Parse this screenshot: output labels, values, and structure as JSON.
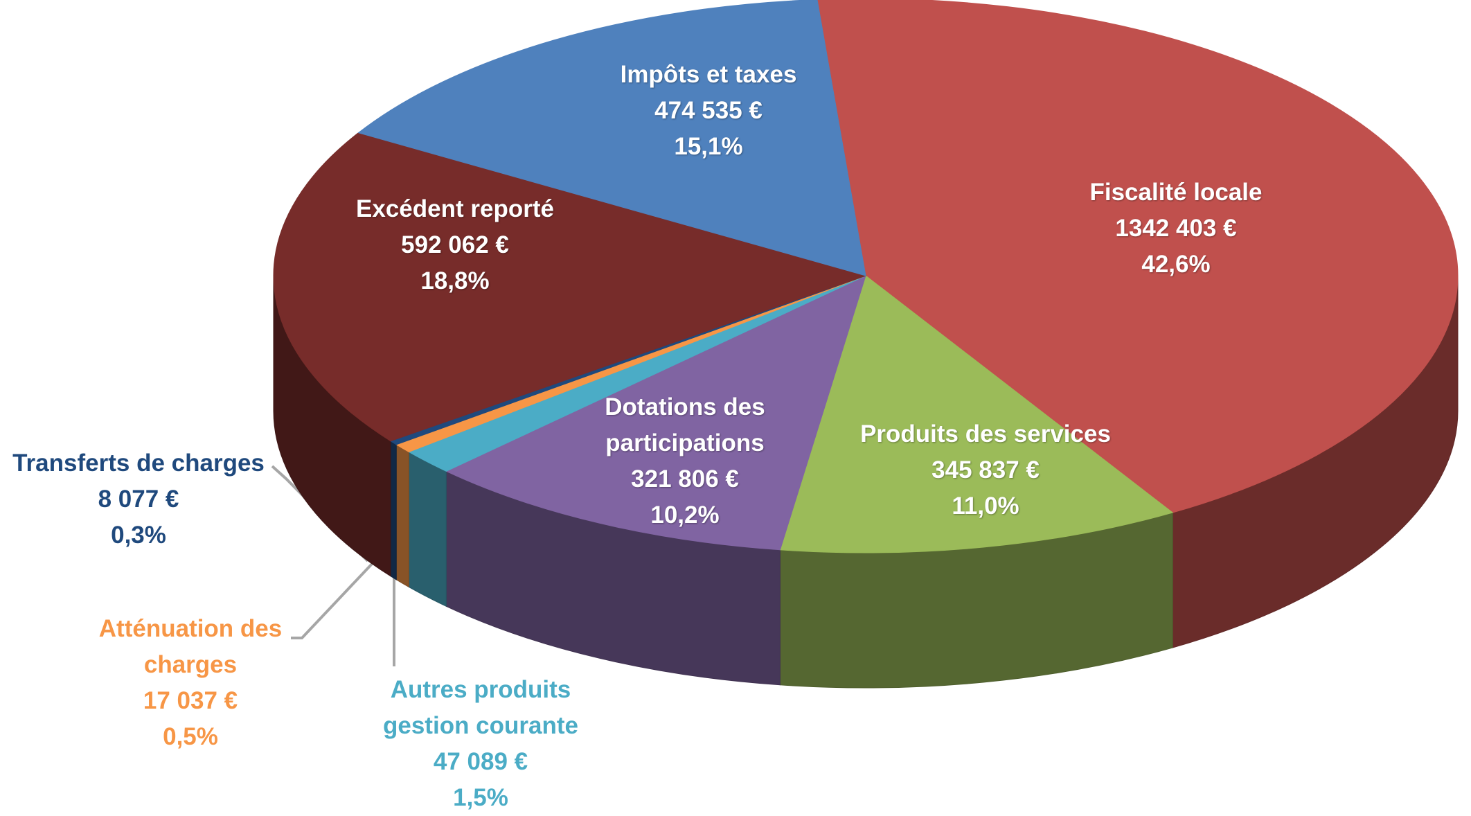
{
  "chart_data": {
    "type": "pie",
    "categories": [
      "Fiscalité locale",
      "Produits des services",
      "Dotations des participations",
      "Autres produits gestion courante",
      "Atténuation des charges",
      "Transferts de charges",
      "Excédent reporté",
      "Impôts et taxes"
    ],
    "values": [
      1342403,
      345837,
      321806,
      47089,
      17037,
      8077,
      592062,
      474535
    ],
    "value_labels": [
      "1342 403 €",
      "345 837 €",
      "321 806 €",
      "47 089 €",
      "17 037 €",
      "8 077 €",
      "592 062 €",
      "474 535 €"
    ],
    "percents": [
      42.6,
      11.0,
      10.2,
      1.5,
      0.5,
      0.3,
      18.8,
      15.1
    ],
    "percent_labels": [
      "42,6%",
      "11,0%",
      "10,2%",
      "1,5%",
      "0,5%",
      "0,3%",
      "18,8%",
      "15,1%"
    ],
    "colors": [
      "#c0504d",
      "#9bbb59",
      "#8064a2",
      "#4bacc6",
      "#f79646",
      "#1f497d",
      "#772c2a",
      "#4f81bd"
    ]
  }
}
